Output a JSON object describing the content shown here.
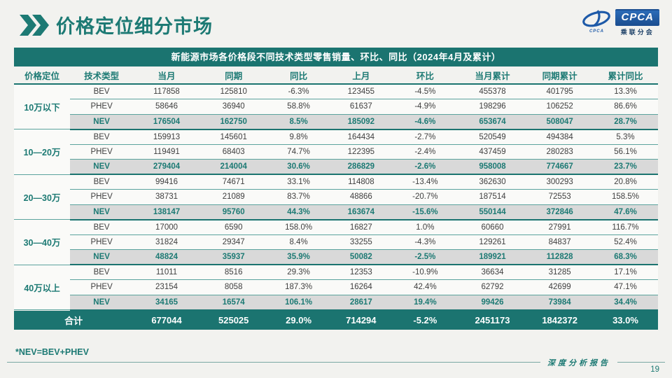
{
  "page": {
    "title": "价格定位细分市场",
    "footnote": "*NEV=BEV+PHEV",
    "footer_label": "深度分析报告",
    "page_number": "19"
  },
  "logo": {
    "acronym": "CPCA",
    "subtitle": "乘联分会",
    "swirl_caption": "CPCA"
  },
  "colors": {
    "accent_teal": "#1b7470",
    "teal_text": "#1d7a74",
    "nev_row_bg": "#d9d9d9",
    "logo_blue": "#1e5aa8",
    "page_bg": "#f2f2ef"
  },
  "table": {
    "caption": "新能源市场各价格段不同技术类型零售销量、环比、同比（2024年4月及累计）",
    "headers": [
      "价格定位",
      "技术类型",
      "当月",
      "同期",
      "同比",
      "上月",
      "环比",
      "当月累计",
      "同期累计",
      "累计同比"
    ],
    "groups": [
      {
        "label": "10万以下",
        "rows": [
          {
            "type": "BEV",
            "values": [
              "117858",
              "125810",
              "-6.3%",
              "123455",
              "-4.5%",
              "455378",
              "401795",
              "13.3%"
            ]
          },
          {
            "type": "PHEV",
            "values": [
              "58646",
              "36940",
              "58.8%",
              "61637",
              "-4.9%",
              "198296",
              "106252",
              "86.6%"
            ]
          },
          {
            "type": "NEV",
            "values": [
              "176504",
              "162750",
              "8.5%",
              "185092",
              "-4.6%",
              "653674",
              "508047",
              "28.7%"
            ]
          }
        ]
      },
      {
        "label": "10—20万",
        "rows": [
          {
            "type": "BEV",
            "values": [
              "159913",
              "145601",
              "9.8%",
              "164434",
              "-2.7%",
              "520549",
              "494384",
              "5.3%"
            ]
          },
          {
            "type": "PHEV",
            "values": [
              "119491",
              "68403",
              "74.7%",
              "122395",
              "-2.4%",
              "437459",
              "280283",
              "56.1%"
            ]
          },
          {
            "type": "NEV",
            "values": [
              "279404",
              "214004",
              "30.6%",
              "286829",
              "-2.6%",
              "958008",
              "774667",
              "23.7%"
            ]
          }
        ]
      },
      {
        "label": "20—30万",
        "rows": [
          {
            "type": "BEV",
            "values": [
              "99416",
              "74671",
              "33.1%",
              "114808",
              "-13.4%",
              "362630",
              "300293",
              "20.8%"
            ]
          },
          {
            "type": "PHEV",
            "values": [
              "38731",
              "21089",
              "83.7%",
              "48866",
              "-20.7%",
              "187514",
              "72553",
              "158.5%"
            ]
          },
          {
            "type": "NEV",
            "values": [
              "138147",
              "95760",
              "44.3%",
              "163674",
              "-15.6%",
              "550144",
              "372846",
              "47.6%"
            ]
          }
        ]
      },
      {
        "label": "30—40万",
        "rows": [
          {
            "type": "BEV",
            "values": [
              "17000",
              "6590",
              "158.0%",
              "16827",
              "1.0%",
              "60660",
              "27991",
              "116.7%"
            ]
          },
          {
            "type": "PHEV",
            "values": [
              "31824",
              "29347",
              "8.4%",
              "33255",
              "-4.3%",
              "129261",
              "84837",
              "52.4%"
            ]
          },
          {
            "type": "NEV",
            "values": [
              "48824",
              "35937",
              "35.9%",
              "50082",
              "-2.5%",
              "189921",
              "112828",
              "68.3%"
            ]
          }
        ]
      },
      {
        "label": "40万以上",
        "rows": [
          {
            "type": "BEV",
            "values": [
              "11011",
              "8516",
              "29.3%",
              "12353",
              "-10.9%",
              "36634",
              "31285",
              "17.1%"
            ]
          },
          {
            "type": "PHEV",
            "values": [
              "23154",
              "8058",
              "187.3%",
              "16264",
              "42.4%",
              "62792",
              "42699",
              "47.1%"
            ]
          },
          {
            "type": "NEV",
            "values": [
              "34165",
              "16574",
              "106.1%",
              "28617",
              "19.4%",
              "99426",
              "73984",
              "34.4%"
            ]
          }
        ]
      }
    ],
    "total": {
      "label": "合计",
      "values": [
        "677044",
        "525025",
        "29.0%",
        "714294",
        "-5.2%",
        "2451173",
        "1842372",
        "33.0%"
      ]
    }
  }
}
